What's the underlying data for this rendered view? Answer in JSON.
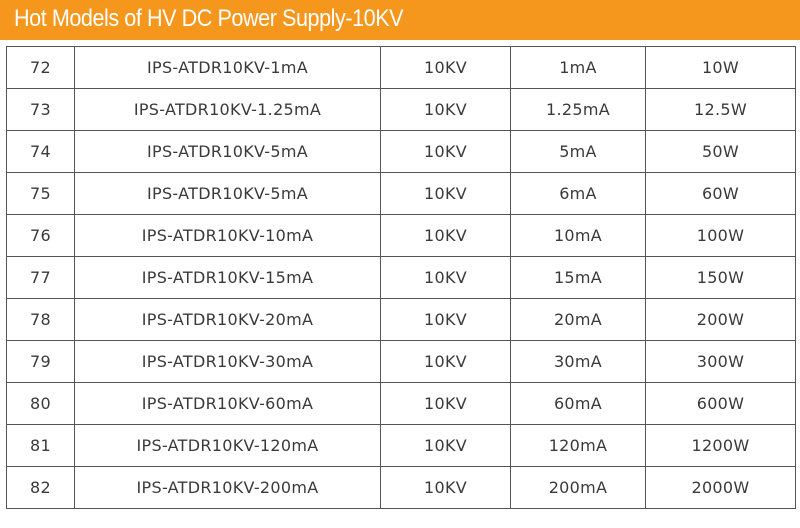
{
  "header": {
    "title": "Hot Models of HV DC Power Supply-10KV"
  },
  "table": {
    "rows": [
      [
        "72",
        "IPS-ATDR10KV-1mA",
        "10KV",
        "1mA",
        "10W"
      ],
      [
        "73",
        "IPS-ATDR10KV-1.25mA",
        "10KV",
        "1.25mA",
        "12.5W"
      ],
      [
        "74",
        "IPS-ATDR10KV-5mA",
        "10KV",
        "5mA",
        "50W"
      ],
      [
        "75",
        "IPS-ATDR10KV-5mA",
        "10KV",
        "6mA",
        "60W"
      ],
      [
        "76",
        "IPS-ATDR10KV-10mA",
        "10KV",
        "10mA",
        "100W"
      ],
      [
        "77",
        "IPS-ATDR10KV-15mA",
        "10KV",
        "15mA",
        "150W"
      ],
      [
        "78",
        "IPS-ATDR10KV-20mA",
        "10KV",
        "20mA",
        "200W"
      ],
      [
        "79",
        "IPS-ATDR10KV-30mA",
        "10KV",
        "30mA",
        "300W"
      ],
      [
        "80",
        "IPS-ATDR10KV-60mA",
        "10KV",
        "60mA",
        "600W"
      ],
      [
        "81",
        "IPS-ATDR10KV-120mA",
        "10KV",
        "120mA",
        "1200W"
      ],
      [
        "82",
        "IPS-ATDR10KV-200mA",
        "10KV",
        "200mA",
        "2000W"
      ]
    ]
  }
}
